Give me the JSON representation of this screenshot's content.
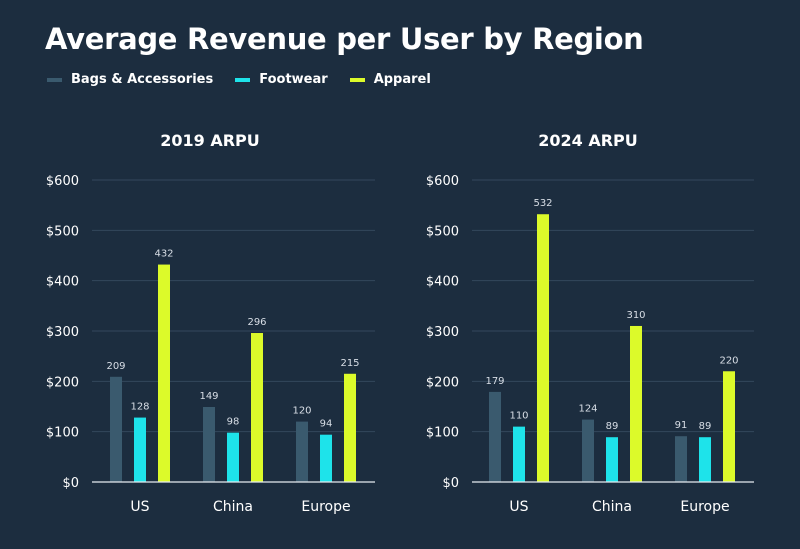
{
  "title": "Average Revenue per User by Region",
  "colors": {
    "background": "#1c2d3f",
    "grid": "#33475c",
    "axis": "#e6ebf0"
  },
  "legend": [
    {
      "label": "Bags & Accessories",
      "color": "#3a5a6e"
    },
    {
      "label": "Footwear",
      "color": "#1ee3ea"
    },
    {
      "label": "Apparel",
      "color": "#dcfa2a"
    }
  ],
  "chart_data": [
    {
      "type": "bar",
      "title": "2019 ARPU",
      "categories": [
        "US",
        "China",
        "Europe"
      ],
      "series": [
        {
          "name": "Bags & Accessories",
          "values": [
            209,
            149,
            120
          ]
        },
        {
          "name": "Footwear",
          "values": [
            128,
            98,
            94
          ]
        },
        {
          "name": "Apparel",
          "values": [
            432,
            296,
            215
          ]
        }
      ],
      "ylim": [
        0,
        600
      ],
      "yticks": [
        0,
        100,
        200,
        300,
        400,
        500,
        600
      ],
      "ytick_labels": [
        "$0",
        "$100",
        "$200",
        "$300",
        "$400",
        "$500",
        "$600"
      ],
      "grid": true
    },
    {
      "type": "bar",
      "title": "2024 ARPU",
      "categories": [
        "US",
        "China",
        "Europe"
      ],
      "series": [
        {
          "name": "Bags & Accessories",
          "values": [
            179,
            124,
            91
          ]
        },
        {
          "name": "Footwear",
          "values": [
            110,
            89,
            89
          ]
        },
        {
          "name": "Apparel",
          "values": [
            532,
            310,
            220
          ]
        }
      ],
      "ylim": [
        0,
        600
      ],
      "yticks": [
        0,
        100,
        200,
        300,
        400,
        500,
        600
      ],
      "ytick_labels": [
        "$0",
        "$100",
        "$200",
        "$300",
        "$400",
        "$500",
        "$600"
      ],
      "grid": true
    }
  ]
}
